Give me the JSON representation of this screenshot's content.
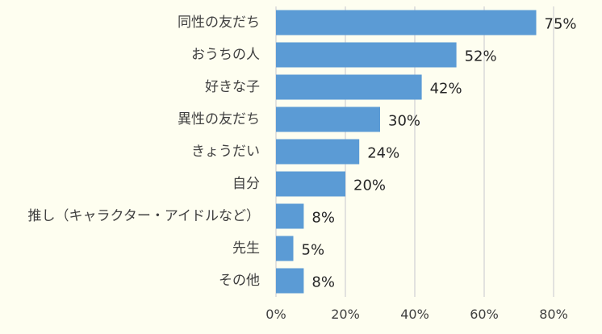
{
  "chart_data": {
    "type": "bar",
    "orientation": "horizontal",
    "categories": [
      "同性の友だち",
      "おうちの人",
      "好きな子",
      "異性の友だち",
      "きょうだい",
      "自分",
      "推し（キャラクター・アイドルなど）",
      "先生",
      "その他"
    ],
    "values": [
      75,
      52,
      42,
      30,
      24,
      20,
      8,
      5,
      8
    ],
    "value_labels": [
      "75%",
      "52%",
      "42%",
      "30%",
      "24%",
      "20%",
      "8%",
      "5%",
      "8%"
    ],
    "xlim": [
      0,
      80
    ],
    "x_ticks": [
      0,
      20,
      40,
      60,
      80
    ],
    "x_tick_labels": [
      "0%",
      "20%",
      "40%",
      "60%",
      "80%"
    ],
    "grid": true,
    "bar_color": "#5B9BD5",
    "grid_color": "#D9D9D9",
    "background_color": "#FEFEF0"
  }
}
